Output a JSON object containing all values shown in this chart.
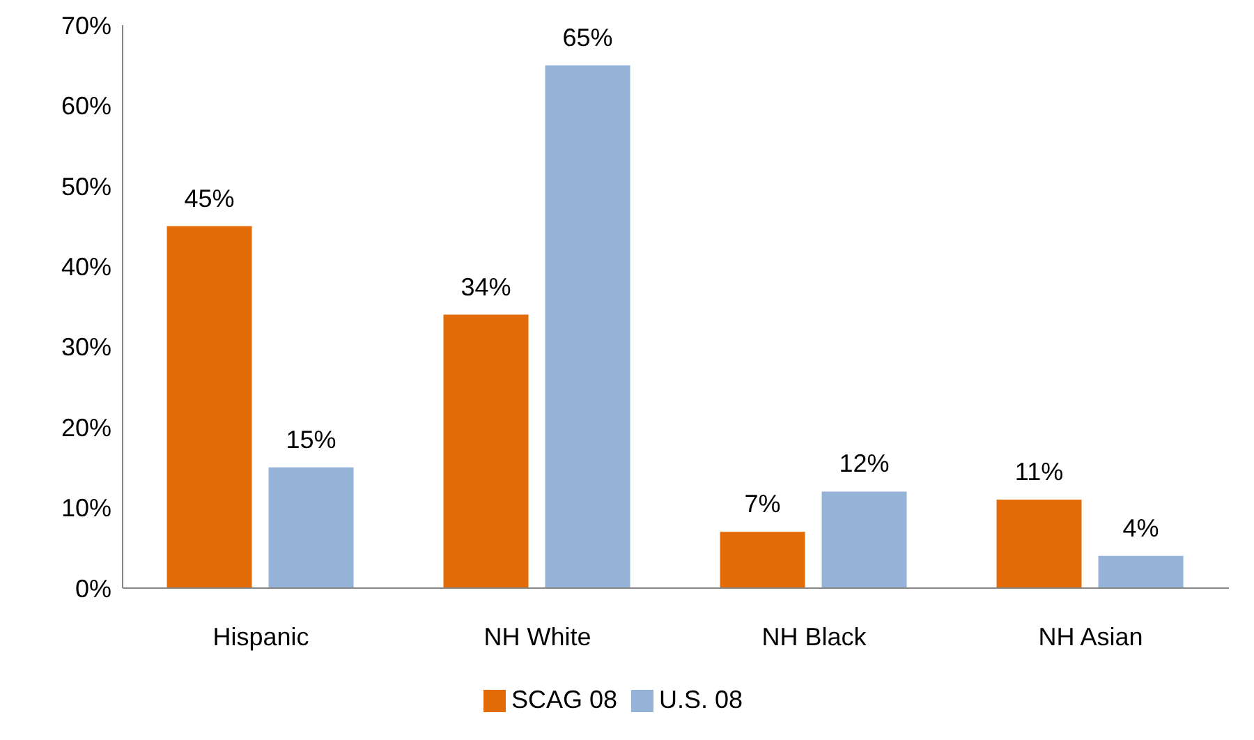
{
  "chart_data": {
    "type": "bar",
    "categories": [
      "Hispanic",
      "NH White",
      "NH Black",
      "NH Asian"
    ],
    "series": [
      {
        "name": "SCAG 08",
        "color": "#e36c09",
        "values": [
          45,
          34,
          7,
          11
        ],
        "value_labels": [
          "45%",
          "34%",
          "7%",
          "11%"
        ]
      },
      {
        "name": "U.S. 08",
        "color": "#95b3d7",
        "values": [
          15,
          65,
          12,
          4
        ],
        "value_labels": [
          "15%",
          "65%",
          "12%",
          "4%"
        ]
      }
    ],
    "ylim": [
      0,
      70
    ],
    "yticks": [
      {
        "value": 0,
        "label": "0%"
      },
      {
        "value": 10,
        "label": "10%"
      },
      {
        "value": 20,
        "label": "20%"
      },
      {
        "value": 30,
        "label": "30%"
      },
      {
        "value": 40,
        "label": "40%"
      },
      {
        "value": 50,
        "label": "50%"
      },
      {
        "value": 60,
        "label": "60%"
      },
      {
        "value": 70,
        "label": "70%"
      }
    ],
    "grid": false,
    "legend": "bottom"
  }
}
